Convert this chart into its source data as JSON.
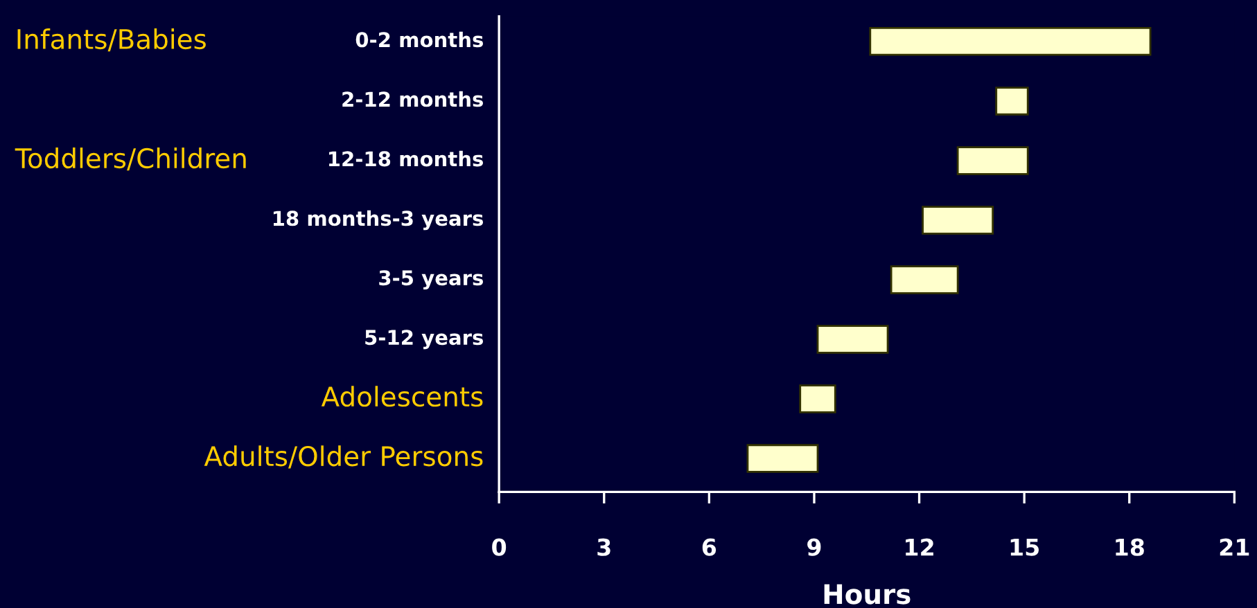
{
  "chart_data": {
    "type": "bar",
    "orientation": "horizontal",
    "xlabel": "Hours",
    "categories": [
      "0-2 months",
      "2-12 months",
      "12-18 months",
      "18 months-3 years",
      "3-5 years",
      "5-12 years",
      "Adolescents",
      "Adults/Older Persons"
    ],
    "base": [
      10.6,
      14.2,
      13.1,
      12.1,
      11.2,
      9.1,
      8.6,
      7.1
    ],
    "values": [
      8,
      0.9,
      2,
      2,
      1.9,
      2,
      1,
      2
    ],
    "color": "#ffffcc",
    "xlim": [
      0,
      21
    ],
    "xticks": [
      0,
      3,
      6,
      9,
      12,
      15,
      18,
      21
    ],
    "annotations": [
      "Infants/Babies",
      "Toddlers/Children"
    ],
    "grid": false,
    "legend": false
  }
}
